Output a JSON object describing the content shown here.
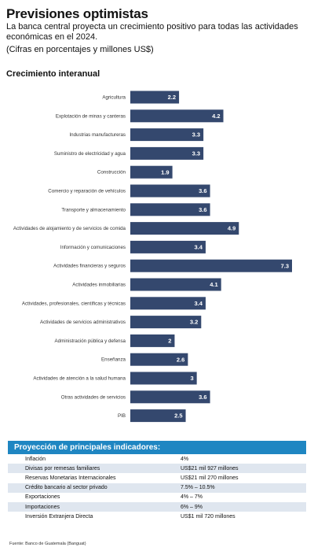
{
  "header": {
    "title": "Previsiones optimistas",
    "subtitle": "La banca central proyecta un crecimiento positivo para todas las actividades económicas en el 2024.",
    "units": "(Cifras en porcentajes y millones US$)"
  },
  "chart_data": {
    "type": "bar",
    "orientation": "horizontal",
    "title": "Crecimiento interanual",
    "categories": [
      "Agricultura",
      "Explotación de minas y canteras",
      "Industrias manufactureras",
      "Suministro de electricidad y agua",
      "Construcción",
      "Comercio y reparación de vehículos",
      "Transporte y almacenamiento",
      "Actividades de alojamiento y de servicios de comida",
      "Información y comunicaciones",
      "Actividades financieras y seguros",
      "Actividades inmobiliarias",
      "Actividades, profesionales, científicas y técnicas",
      "Actividades de servicios administrativos",
      "Administración pública y defensa",
      "Enseñanza",
      "Actividades de atención a la salud humana",
      "Otras actividades de servicios",
      "PIB"
    ],
    "values": [
      2.2,
      4.2,
      3.3,
      3.3,
      1.9,
      3.6,
      3.6,
      4.9,
      3.4,
      7.3,
      4.1,
      3.4,
      3.2,
      2,
      2.6,
      3,
      3.6,
      2.5
    ],
    "value_labels": [
      "2.2",
      "4.2",
      "3.3",
      "3.3",
      "1.9",
      "3.6",
      "3.6",
      "4.9",
      "3.4",
      "7.3",
      "4.1",
      "3.4",
      "3.2",
      "2",
      "2.6",
      "3",
      "3.6",
      "2.5"
    ],
    "xlim": [
      0,
      7.3
    ],
    "grid": false,
    "bar_color": "#34486e"
  },
  "table": {
    "title": "Proyección de principales indicadores:",
    "rows": [
      {
        "label": "Inflación",
        "value": "4%"
      },
      {
        "label": "Divisas por remesas familiares",
        "value": "US$21 mil 927 millones"
      },
      {
        "label": "Reservas Monetarias Internacionales",
        "value": "US$21 mil 270 millones"
      },
      {
        "label": "Crédito bancario al sector privado",
        "value": "7.5% – 10.5%"
      },
      {
        "label": "Exportaciones",
        "value": "4% – 7%"
      },
      {
        "label": "Importaciones",
        "value": "6% – 9%"
      },
      {
        "label": "Inversión Extranjera Directa",
        "value": "US$1 mil 720 millones"
      }
    ]
  },
  "source": "Fuente: Banco de Guatemala (Banguat)",
  "colors": {
    "accent": "#1f86c2",
    "bar": "#34486e",
    "row_alt": "#dfe6ef"
  }
}
